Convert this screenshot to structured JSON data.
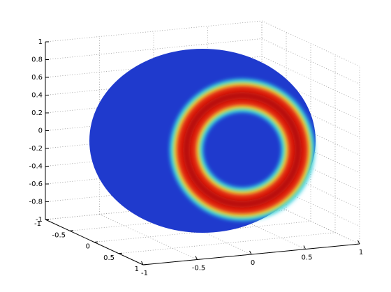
{
  "chart_data": {
    "type": "surface3d",
    "xlim": [
      -1,
      1
    ],
    "ylim": [
      -1,
      1
    ],
    "zlim": [
      -1,
      1
    ],
    "xticks": [
      -1,
      -0.5,
      0,
      0.5,
      1
    ],
    "yticks": [
      -1,
      -0.5,
      0,
      0.5,
      1
    ],
    "zticks": [
      -1,
      -0.8,
      -0.6,
      -0.4,
      -0.2,
      0,
      0.2,
      0.4,
      0.6,
      0.8,
      1
    ],
    "grid": true
  }
}
